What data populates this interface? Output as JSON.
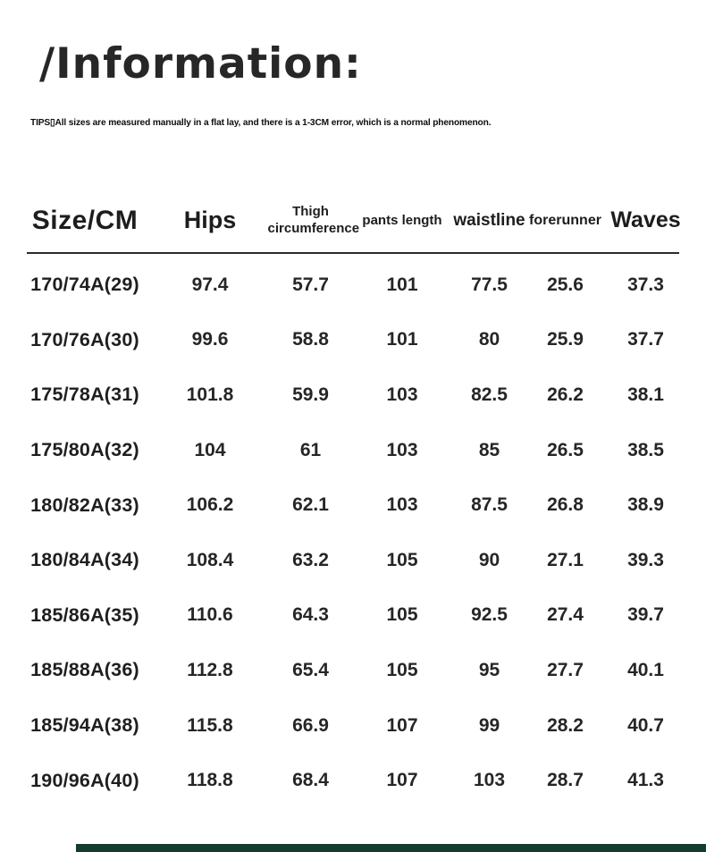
{
  "page": {
    "title": "/Information:",
    "tips": "TIPS▯All sizes are measured manually in a flat lay, and there is a 1-3CM error, which is a normal phenomenon."
  },
  "table": {
    "columns": [
      {
        "label": "Size/CM"
      },
      {
        "label": "Hips"
      },
      {
        "label": "Thigh circumference"
      },
      {
        "label": "pants length"
      },
      {
        "label": "waistline"
      },
      {
        "label": "forerunner"
      },
      {
        "label": "Waves"
      }
    ],
    "rows": [
      [
        "170/74A(29)",
        "97.4",
        "57.7",
        "101",
        "77.5",
        "25.6",
        "37.3"
      ],
      [
        "170/76A(30)",
        "99.6",
        "58.8",
        "101",
        "80",
        "25.9",
        "37.7"
      ],
      [
        "175/78A(31)",
        "101.8",
        "59.9",
        "103",
        "82.5",
        "26.2",
        "38.1"
      ],
      [
        "175/80A(32)",
        "104",
        "61",
        "103",
        "85",
        "26.5",
        "38.5"
      ],
      [
        "180/82A(33)",
        "106.2",
        "62.1",
        "103",
        "87.5",
        "26.8",
        "38.9"
      ],
      [
        "180/84A(34)",
        "108.4",
        "63.2",
        "105",
        "90",
        "27.1",
        "39.3"
      ],
      [
        "185/86A(35)",
        "110.6",
        "64.3",
        "105",
        "92.5",
        "27.4",
        "39.7"
      ],
      [
        "185/88A(36)",
        "112.8",
        "65.4",
        "105",
        "95",
        "27.7",
        "40.1"
      ],
      [
        "185/94A(38)",
        "115.8",
        "66.9",
        "107",
        "99",
        "28.2",
        "40.7"
      ],
      [
        "190/96A(40)",
        "118.8",
        "68.4",
        "107",
        "103",
        "28.7",
        "41.3"
      ]
    ]
  },
  "colors": {
    "text": "#262626",
    "title": "#272727",
    "header_divider": "#2b2b2b",
    "bottom_bar": "#143c31",
    "background": "#ffffff"
  }
}
